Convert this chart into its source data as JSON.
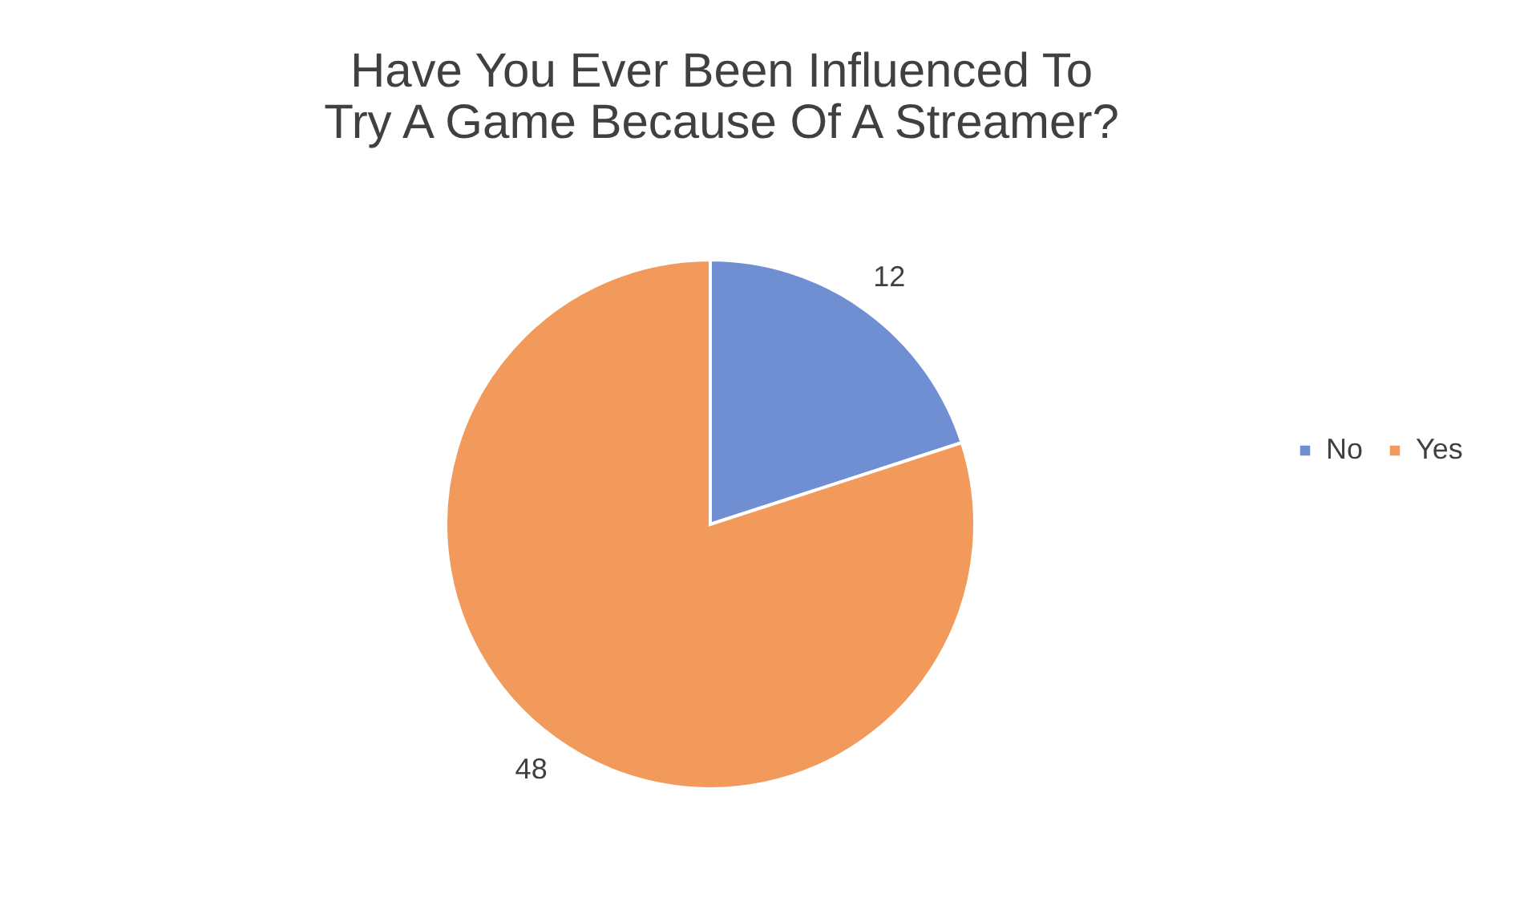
{
  "chart_data": {
    "type": "pie",
    "title": "Have You Ever Been Influenced To Try A Game Because Of A Streamer?",
    "categories": [
      "No",
      "Yes"
    ],
    "values": [
      12,
      48
    ],
    "colors": [
      "#6f8fd2",
      "#f19a5c"
    ],
    "data_labels": true,
    "legend": "right"
  }
}
